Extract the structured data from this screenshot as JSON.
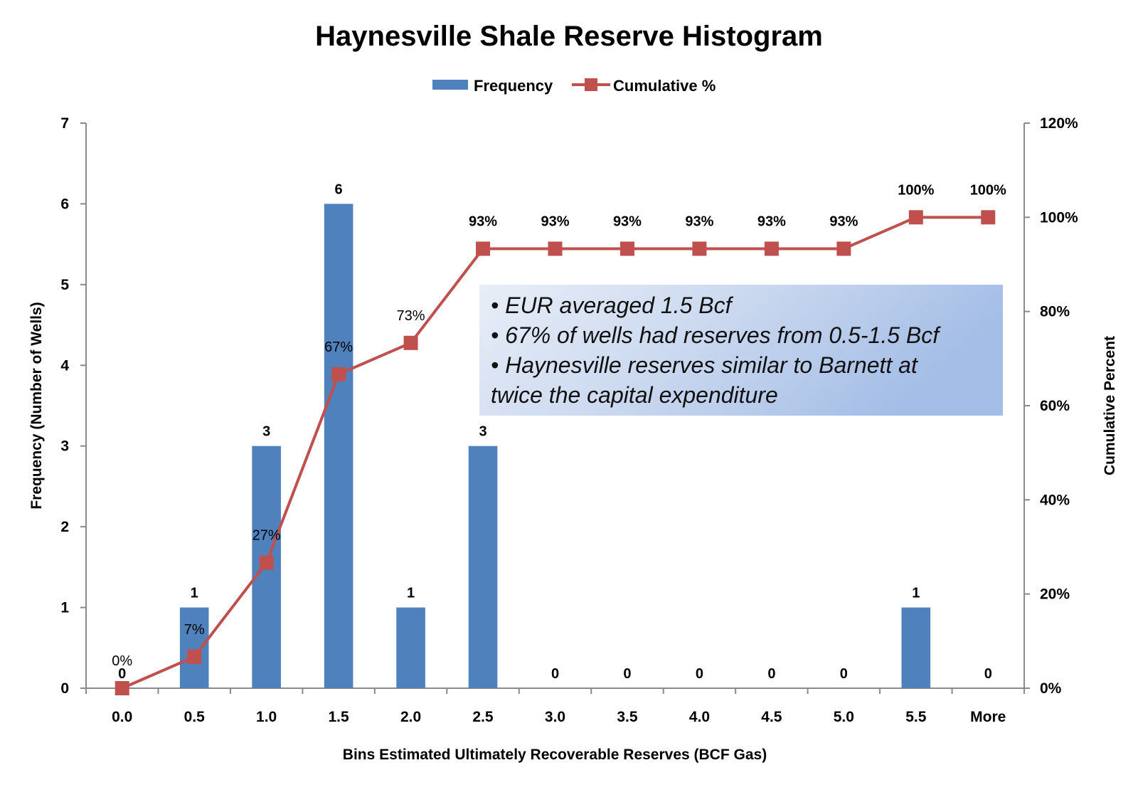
{
  "chart_data": {
    "type": "bar",
    "title": "Haynesville Shale Reserve Histogram",
    "xlabel": "Bins Estimated Ultimately Recoverable Reserves (BCF Gas)",
    "ylabel": "Frequency (Number of Wells)",
    "y2label": "Cumulative Percent",
    "categories": [
      "0.0",
      "0.5",
      "1.0",
      "1.5",
      "2.0",
      "2.5",
      "3.0",
      "3.5",
      "4.0",
      "4.5",
      "5.0",
      "5.5",
      "More"
    ],
    "series": [
      {
        "name": "Frequency",
        "type": "bar",
        "axis": "left",
        "color": "#4f81bd",
        "values": [
          0,
          1,
          3,
          6,
          1,
          3,
          0,
          0,
          0,
          0,
          0,
          1,
          0
        ],
        "labels": [
          "0",
          "1",
          "3",
          "6",
          "1",
          "3",
          "0",
          "0",
          "0",
          "0",
          "0",
          "1",
          "0"
        ]
      },
      {
        "name": "Cumulative %",
        "type": "line",
        "axis": "right",
        "color": "#c0504d",
        "values": [
          0,
          6.67,
          26.67,
          66.67,
          73.33,
          93.33,
          93.33,
          93.33,
          93.33,
          93.33,
          93.33,
          100,
          100
        ],
        "labels": [
          "0%",
          "7%",
          "27%",
          "67%",
          "73%",
          "93%",
          "93%",
          "93%",
          "93%",
          "93%",
          "93%",
          "100%",
          "100%"
        ]
      }
    ],
    "ylim": [
      0,
      7
    ],
    "yticks": [
      "0",
      "1",
      "2",
      "3",
      "4",
      "5",
      "6",
      "7"
    ],
    "y2lim": [
      0,
      120
    ],
    "y2ticks": [
      "0%",
      "20%",
      "40%",
      "60%",
      "80%",
      "100%",
      "120%"
    ],
    "grid": false,
    "legend": "top-center",
    "annotation": {
      "lines": [
        "• EUR averaged 1.5 Bcf",
        "• 67% of wells had reserves from 0.5-1.5 Bcf",
        "• Haynesville reserves similar to Barnett at",
        "twice the capital expenditure"
      ]
    }
  }
}
